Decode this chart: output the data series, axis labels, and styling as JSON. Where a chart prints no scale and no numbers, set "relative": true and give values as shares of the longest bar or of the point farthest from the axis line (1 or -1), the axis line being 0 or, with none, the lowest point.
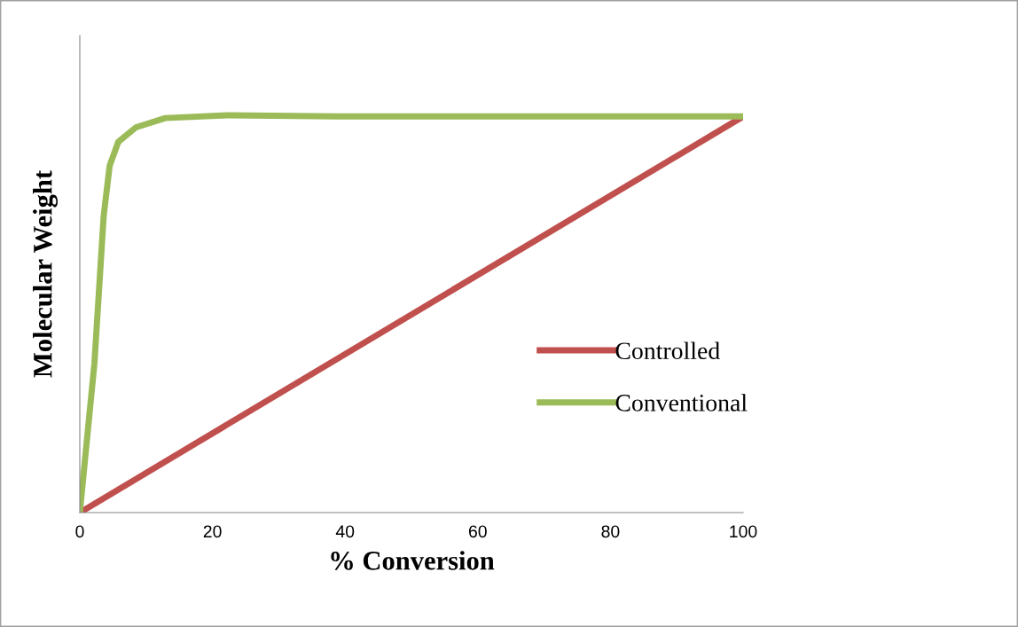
{
  "chart_data": {
    "type": "line",
    "relative": true,
    "xlabel": "% Conversion",
    "ylabel": "Molecular Weight",
    "xlim": [
      0,
      100
    ],
    "xticks": [
      0,
      20,
      40,
      60,
      80,
      100
    ],
    "tick_labels": "x",
    "grid": false,
    "legend": "center right",
    "marker": "none",
    "line_style": "solid",
    "series": [
      {
        "name": "Controlled",
        "color": "#c0504d",
        "x": [
          0,
          100
        ],
        "values": [
          0,
          0.997
        ]
      },
      {
        "name": "Conventional",
        "color": "#9bbb59",
        "x": [
          0,
          2.2,
          3.6,
          4.5,
          5.8,
          8.5,
          12.9,
          22.3,
          38.8,
          100
        ],
        "values": [
          0,
          0.375,
          0.747,
          0.873,
          0.933,
          0.97,
          0.993,
          1.0,
          0.997,
          0.997
        ]
      }
    ]
  }
}
